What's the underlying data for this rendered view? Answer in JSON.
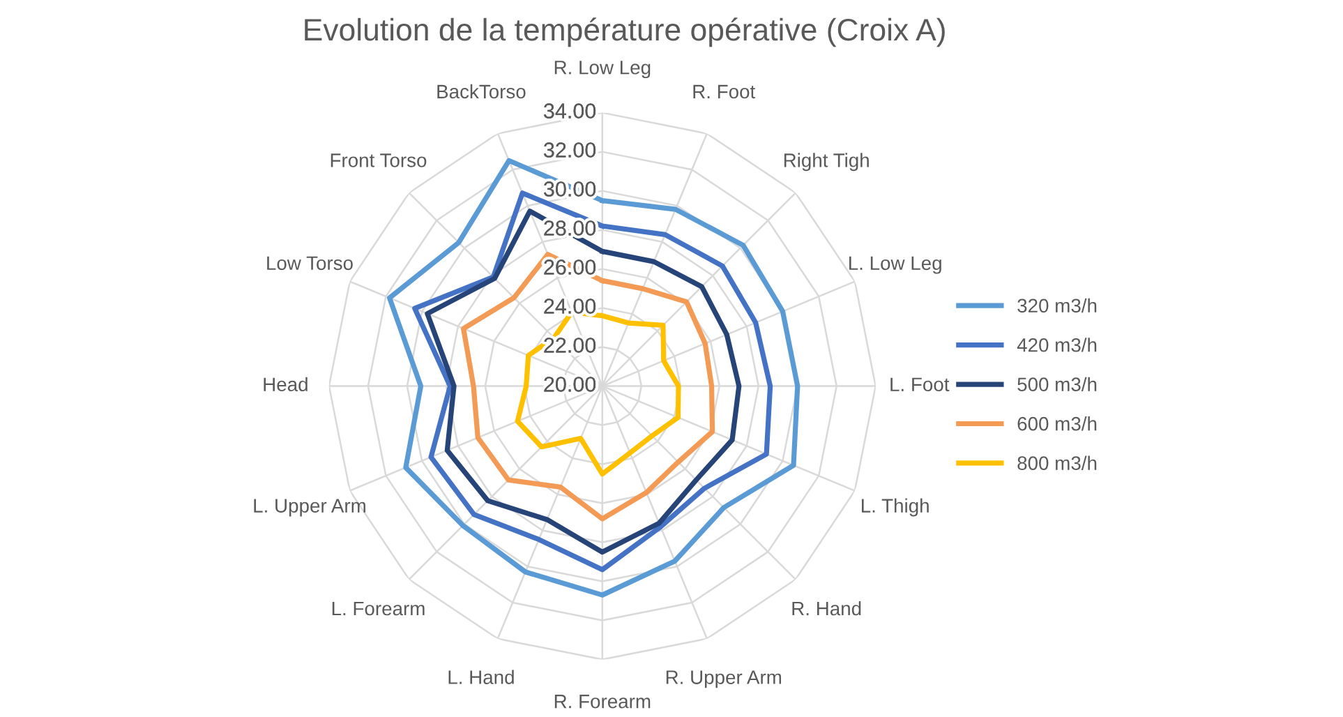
{
  "chart_data": {
    "type": "radar",
    "title": "Evolution de la température opérative (Croix A)",
    "categories": [
      "R. Low Leg",
      "R. Foot",
      "Right Tigh",
      "L. Low Leg",
      "L. Foot",
      "L. Thigh",
      "R. Hand",
      "R. Upper Arm",
      "R. Forearm",
      "L. Hand",
      "L. Forearm",
      "L. Upper Arm",
      "Head",
      "Low Torso",
      "Front Torso",
      "BackTorso"
    ],
    "series": [
      {
        "name": "320 m3/h",
        "color": "#5b9bd5",
        "values": [
          29.5,
          29.8,
          30.2,
          30.0,
          30.0,
          30.6,
          28.8,
          29.7,
          30.7,
          30.3,
          30.1,
          30.9,
          29.3,
          31.8,
          30.4,
          32.5
        ]
      },
      {
        "name": "420 m3/h",
        "color": "#4472c4",
        "values": [
          28.2,
          28.4,
          28.7,
          28.5,
          28.6,
          29.1,
          27.4,
          27.8,
          29.4,
          28.5,
          29.3,
          29.5,
          27.8,
          30.4,
          27.9,
          30.7
        ]
      },
      {
        "name": "500 m3/h",
        "color": "#264478",
        "values": [
          26.9,
          26.9,
          27.2,
          26.9,
          27.0,
          27.2,
          26.8,
          27.6,
          28.5,
          27.4,
          28.3,
          28.6,
          27.6,
          29.7,
          27.8,
          29.7
        ]
      },
      {
        "name": "600 m3/h",
        "color": "#f39a55",
        "values": [
          25.4,
          25.4,
          26.1,
          25.7,
          25.6,
          26.1,
          25.5,
          25.9,
          26.8,
          25.6,
          26.8,
          26.9,
          26.6,
          27.7,
          26.4,
          27.3
        ]
      },
      {
        "name": "800 m3/h",
        "color": "#ffc000",
        "values": [
          23.6,
          23.5,
          24.4,
          23.4,
          23.9,
          24.2,
          23.6,
          23.7,
          24.5,
          22.9,
          24.4,
          24.7,
          23.9,
          24.1,
          23.5,
          24.1
        ]
      }
    ],
    "ylim": [
      20,
      34
    ],
    "yticks": [
      {
        "value": 20,
        "label": "20.00"
      },
      {
        "value": 22,
        "label": "22.00"
      },
      {
        "value": 24,
        "label": "24.00"
      },
      {
        "value": 26,
        "label": "26.00"
      },
      {
        "value": 28,
        "label": "28.00"
      },
      {
        "value": 30,
        "label": "30.00"
      },
      {
        "value": 32,
        "label": "32.00"
      },
      {
        "value": 34,
        "label": "34.00"
      }
    ],
    "grid": true,
    "legend": "right",
    "marker": "none",
    "line_style": "solid"
  }
}
